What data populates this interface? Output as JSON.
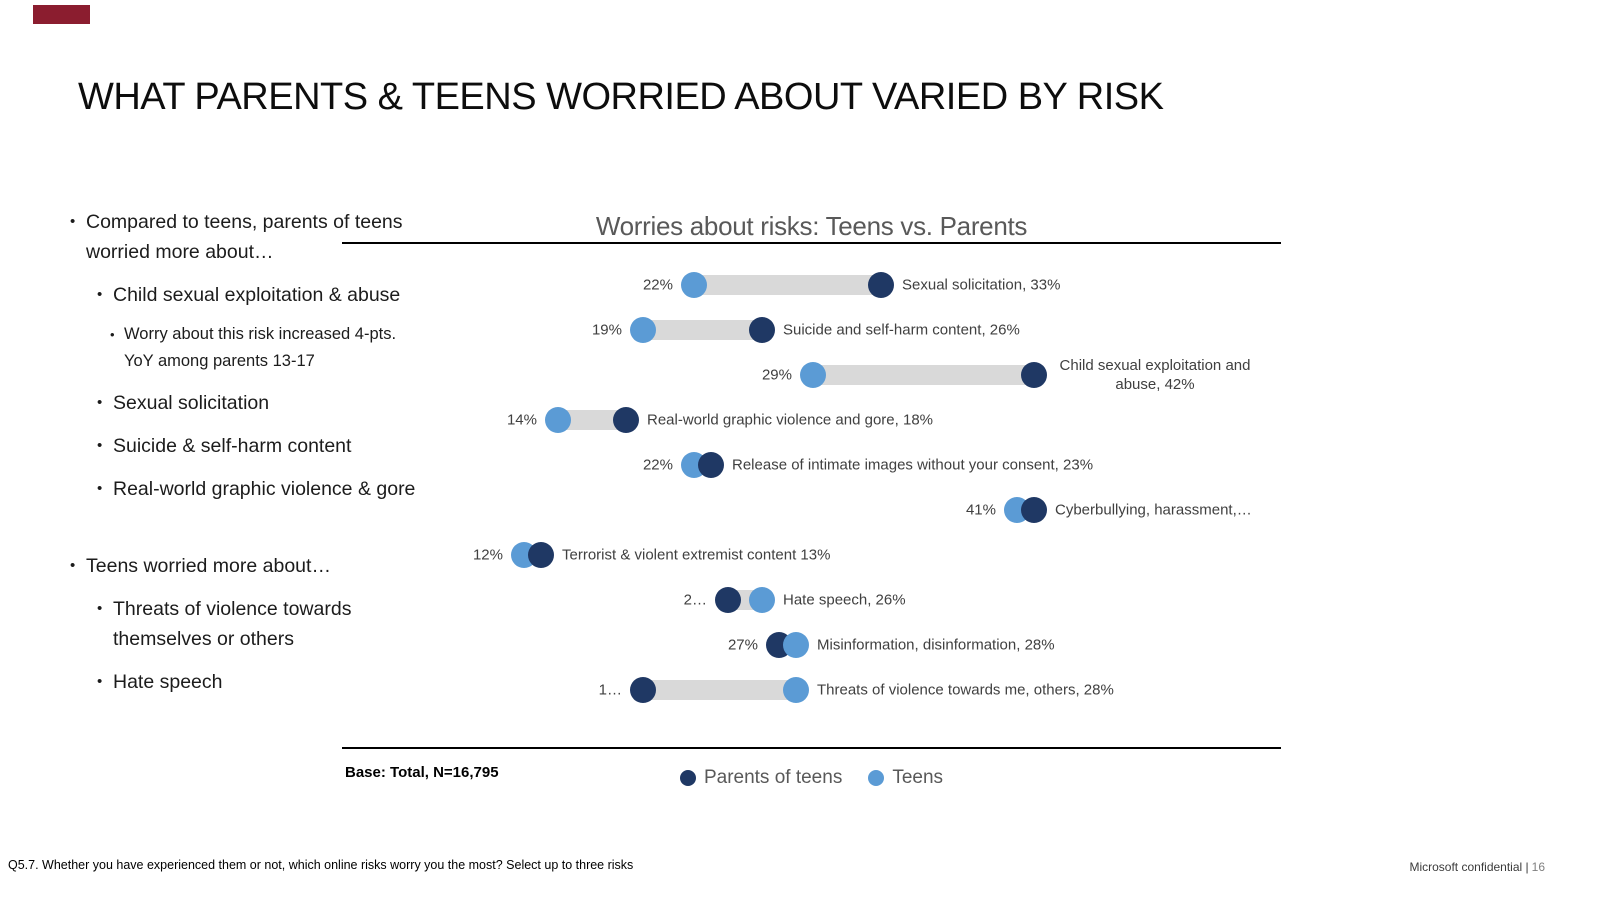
{
  "slide": {
    "title": "WHAT PARENTS & TEENS WORRIED ABOUT VARIED BY RISK",
    "accent_bar_color": "#8B1D2F"
  },
  "bullets": [
    {
      "level": 1,
      "text": "Compared to teens, parents of teens\nworried more about…"
    },
    {
      "level": 2,
      "text": "Child sexual exploitation & abuse"
    },
    {
      "level": 3,
      "text": "Worry about this risk increased 4-pts.\nYoY among parents 13-17"
    },
    {
      "level": 2,
      "text": "Sexual solicitation"
    },
    {
      "level": 2,
      "text": "Suicide & self-harm content"
    },
    {
      "level": 2,
      "text": "Real-world graphic violence & gore"
    },
    {
      "level": 1,
      "text": "Teens worried more about…",
      "gap_before": true
    },
    {
      "level": 2,
      "text": "Threats of violence towards\nthemselves or others"
    },
    {
      "level": 2,
      "text": "Hate speech"
    }
  ],
  "chart_data": {
    "type": "dumbbell",
    "title": "Worries about risks: Teens vs. Parents",
    "value_unit": "%",
    "xlim": [
      0,
      50
    ],
    "grid": false,
    "legend_position": "bottom",
    "base_note": "Base: Total, N=16,795",
    "colors": {
      "teens": "#5B9BD5",
      "parents": "#1F3864",
      "connector": "#D9D9D9"
    },
    "legend": [
      {
        "name": "Parents of teens",
        "series": "parents",
        "color": "#1F3864"
      },
      {
        "name": "Teens",
        "series": "teens",
        "color": "#5B9BD5"
      }
    ],
    "rows": [
      {
        "risk": "Sexual solicitation",
        "teens": 22,
        "parents": 33,
        "left_label": "22%",
        "right_label": "Sexual solicitation, 33%"
      },
      {
        "risk": "Suicide and self-harm content",
        "teens": 19,
        "parents": 26,
        "left_label": "19%",
        "right_label": "Suicide and self-harm content, 26%"
      },
      {
        "risk": "Child sexual exploitation and abuse",
        "teens": 29,
        "parents": 42,
        "left_label": "29%",
        "right_label": "Child sexual exploitation and abuse, 42%",
        "wrap": true
      },
      {
        "risk": "Real-world graphic violence and gore",
        "teens": 14,
        "parents": 18,
        "left_label": "14%",
        "right_label": "Real-world graphic violence and gore, 18%"
      },
      {
        "risk": "Release of intimate images without your consent",
        "teens": 22,
        "parents": 23,
        "left_label": "22%",
        "right_label": "Release of intimate images without your consent, 23%"
      },
      {
        "risk": "Cyberbullying, harassment",
        "teens": 41,
        "parents": 42,
        "left_label": "41%",
        "right_label": "Cyberbullying, harassment,…"
      },
      {
        "risk": "Terrorist & violent extremist content",
        "teens": 12,
        "parents": 13,
        "left_label": "12%",
        "right_label": "Terrorist & violent extremist content 13%"
      },
      {
        "risk": "Hate speech",
        "teens": 26,
        "parents": 24,
        "left_label": "2…",
        "right_label": "Hate speech, 26%"
      },
      {
        "risk": "Misinformation, disinformation",
        "teens": 28,
        "parents": 27,
        "left_label": "27%",
        "right_label": "Misinformation, disinformation, 28%"
      },
      {
        "risk": "Threats of violence towards me, others",
        "teens": 28,
        "parents": 19,
        "left_label": "1…",
        "right_label": "Threats of violence towards me, others, 28%"
      }
    ]
  },
  "footer": {
    "question": "Q5.7. Whether you have experienced them or not, which online risks worry you the most? Select up to three risks",
    "confidential": "Microsoft confidential |",
    "page_number": "16"
  }
}
